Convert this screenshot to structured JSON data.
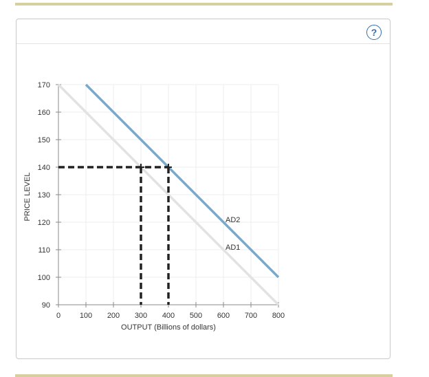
{
  "help": {
    "icon": "help-icon",
    "label": "?"
  },
  "colors": {
    "accent_rule": "#d8cfa1",
    "ad1": "#e2e2e2",
    "ad2": "#7ba7c8",
    "guide": "#222222",
    "grid": "#eeeeee"
  },
  "chart_data": {
    "type": "line",
    "xlabel": "OUTPUT (Billions of dollars)",
    "ylabel": "PRICE LEVEL",
    "xlim": [
      0,
      800
    ],
    "ylim": [
      90,
      170
    ],
    "x_ticks": [
      0,
      100,
      200,
      300,
      400,
      500,
      600,
      700,
      800
    ],
    "y_ticks": [
      90,
      100,
      110,
      120,
      130,
      140,
      150,
      160,
      170
    ],
    "grid": true,
    "series": [
      {
        "name": "AD1",
        "color": "#e2e2e2",
        "points": [
          [
            0,
            170
          ],
          [
            800,
            90
          ]
        ],
        "label_at": [
          600,
          111
        ]
      },
      {
        "name": "AD2",
        "color": "#7ba7c8",
        "points": [
          [
            100,
            170
          ],
          [
            800,
            100
          ]
        ],
        "label_at": [
          600,
          121
        ]
      }
    ],
    "guides": [
      {
        "points": [
          [
            0,
            140
          ],
          [
            400,
            140
          ]
        ]
      },
      {
        "points": [
          [
            300,
            140
          ],
          [
            300,
            90
          ]
        ]
      },
      {
        "points": [
          [
            400,
            140
          ],
          [
            400,
            90
          ]
        ]
      }
    ],
    "markers": [
      {
        "x": 300,
        "y": 140
      },
      {
        "x": 400,
        "y": 140
      }
    ]
  }
}
